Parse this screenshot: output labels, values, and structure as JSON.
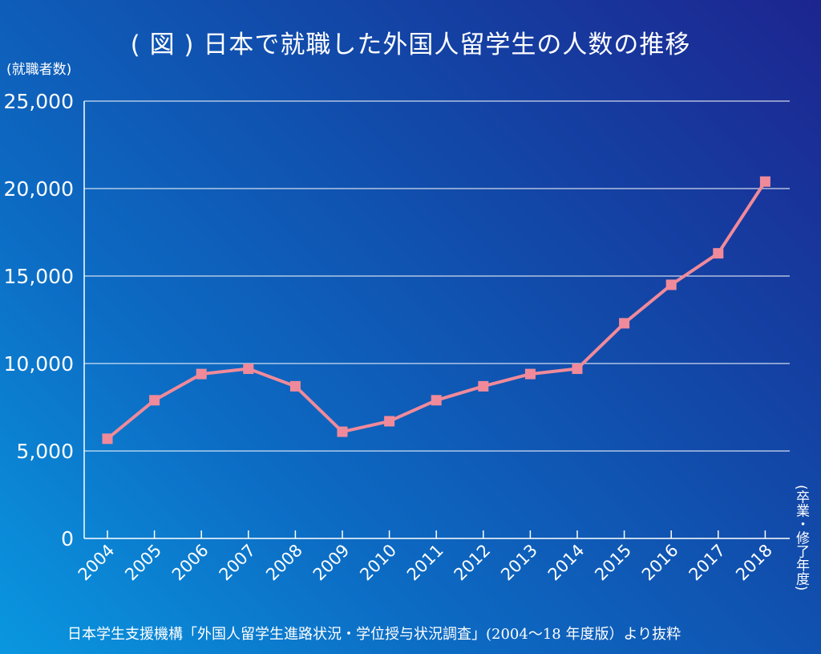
{
  "title": "( 図 ) 日本で就職した外国人留学生の人数の推移",
  "y_unit_label": "(就職者数)",
  "x_unit_label": "(卒業・修了年度)",
  "source": "日本学生支援機構「外国人留学生進路状況・学位授与状況調査」(2004〜18 年度版）より抜粋",
  "colors": {
    "line": "#f08a9a",
    "grid": "#ffffff",
    "text": "#ffffff"
  },
  "chart_data": {
    "type": "line",
    "categories": [
      "2004",
      "2005",
      "2006",
      "2007",
      "2008",
      "2009",
      "2010",
      "2011",
      "2012",
      "2013",
      "2014",
      "2015",
      "2016",
      "2017",
      "2018"
    ],
    "values": [
      5700,
      7900,
      9400,
      9700,
      8700,
      6100,
      6700,
      7900,
      8700,
      9400,
      9700,
      12300,
      14500,
      16300,
      20400
    ],
    "ylim": [
      0,
      25000
    ],
    "yticks": [
      0,
      5000,
      10000,
      15000,
      20000,
      25000
    ],
    "ytick_labels": [
      "0",
      "5,000",
      "10,000",
      "15,000",
      "20,000",
      "25,000"
    ],
    "grid": true,
    "marker": "square"
  }
}
